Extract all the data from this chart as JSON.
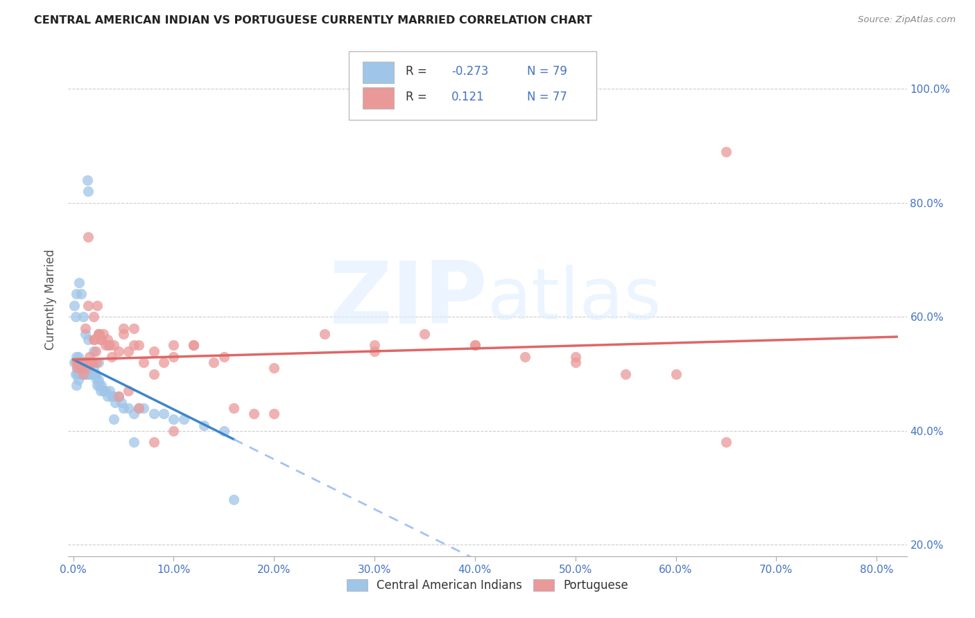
{
  "title": "CENTRAL AMERICAN INDIAN VS PORTUGUESE CURRENTLY MARRIED CORRELATION CHART",
  "source": "Source: ZipAtlas.com",
  "ylabel": "Currently Married",
  "legend_label1": "Central American Indians",
  "legend_label2": "Portuguese",
  "R1": -0.273,
  "N1": 79,
  "R2": 0.121,
  "N2": 77,
  "color1": "#9fc5e8",
  "color2": "#ea9999",
  "trendline1_color": "#3d85c8",
  "trendline2_color": "#e06666",
  "trendline1_dashed_color": "#a4c2f4",
  "xlim": [
    -0.005,
    0.83
  ],
  "ylim": [
    0.18,
    1.08
  ],
  "xtick_vals": [
    0.0,
    0.1,
    0.2,
    0.3,
    0.4,
    0.5,
    0.6,
    0.7,
    0.8
  ],
  "xtick_labels": [
    "0.0%",
    "10.0%",
    "20.0%",
    "30.0%",
    "40.0%",
    "50.0%",
    "60.0%",
    "70.0%",
    "80.0%"
  ],
  "ytick_vals": [
    0.2,
    0.4,
    0.6,
    0.8,
    1.0
  ],
  "ytick_labels": [
    "20.0%",
    "40.0%",
    "60.0%",
    "80.0%",
    "100.0%"
  ],
  "blue_x": [
    0.001,
    0.002,
    0.003,
    0.003,
    0.004,
    0.004,
    0.004,
    0.005,
    0.005,
    0.005,
    0.006,
    0.006,
    0.007,
    0.007,
    0.008,
    0.008,
    0.009,
    0.009,
    0.01,
    0.01,
    0.011,
    0.011,
    0.012,
    0.012,
    0.013,
    0.013,
    0.014,
    0.014,
    0.015,
    0.015,
    0.016,
    0.016,
    0.017,
    0.018,
    0.019,
    0.02,
    0.021,
    0.022,
    0.023,
    0.024,
    0.025,
    0.026,
    0.027,
    0.028,
    0.03,
    0.032,
    0.034,
    0.036,
    0.038,
    0.04,
    0.042,
    0.045,
    0.048,
    0.05,
    0.055,
    0.06,
    0.065,
    0.07,
    0.08,
    0.09,
    0.1,
    0.11,
    0.13,
    0.15,
    0.014,
    0.015,
    0.001,
    0.002,
    0.003,
    0.006,
    0.008,
    0.01,
    0.012,
    0.015,
    0.02,
    0.025,
    0.04,
    0.06,
    0.16
  ],
  "blue_y": [
    0.52,
    0.5,
    0.53,
    0.48,
    0.52,
    0.5,
    0.51,
    0.53,
    0.5,
    0.49,
    0.51,
    0.5,
    0.52,
    0.51,
    0.5,
    0.52,
    0.51,
    0.5,
    0.52,
    0.51,
    0.5,
    0.52,
    0.51,
    0.5,
    0.52,
    0.51,
    0.5,
    0.52,
    0.51,
    0.5,
    0.52,
    0.51,
    0.5,
    0.52,
    0.5,
    0.51,
    0.5,
    0.5,
    0.49,
    0.48,
    0.49,
    0.48,
    0.47,
    0.48,
    0.47,
    0.47,
    0.46,
    0.47,
    0.46,
    0.46,
    0.45,
    0.46,
    0.45,
    0.44,
    0.44,
    0.43,
    0.44,
    0.44,
    0.43,
    0.43,
    0.42,
    0.42,
    0.41,
    0.4,
    0.84,
    0.82,
    0.62,
    0.6,
    0.64,
    0.66,
    0.64,
    0.6,
    0.57,
    0.56,
    0.54,
    0.52,
    0.42,
    0.38,
    0.28
  ],
  "pink_x": [
    0.003,
    0.004,
    0.005,
    0.006,
    0.007,
    0.008,
    0.009,
    0.01,
    0.011,
    0.012,
    0.013,
    0.014,
    0.015,
    0.016,
    0.017,
    0.018,
    0.019,
    0.02,
    0.021,
    0.022,
    0.023,
    0.024,
    0.025,
    0.026,
    0.027,
    0.028,
    0.03,
    0.032,
    0.034,
    0.036,
    0.038,
    0.04,
    0.045,
    0.05,
    0.055,
    0.06,
    0.065,
    0.07,
    0.08,
    0.09,
    0.1,
    0.12,
    0.14,
    0.16,
    0.18,
    0.2,
    0.25,
    0.3,
    0.35,
    0.4,
    0.45,
    0.5,
    0.55,
    0.6,
    0.65,
    0.01,
    0.015,
    0.012,
    0.02,
    0.025,
    0.035,
    0.05,
    0.06,
    0.08,
    0.1,
    0.12,
    0.15,
    0.2,
    0.3,
    0.4,
    0.5,
    0.055,
    0.045,
    0.065,
    0.08,
    0.1,
    0.65
  ],
  "pink_y": [
    0.52,
    0.51,
    0.52,
    0.52,
    0.51,
    0.52,
    0.52,
    0.52,
    0.52,
    0.52,
    0.51,
    0.52,
    0.74,
    0.53,
    0.52,
    0.52,
    0.52,
    0.6,
    0.56,
    0.54,
    0.52,
    0.62,
    0.57,
    0.57,
    0.56,
    0.56,
    0.57,
    0.55,
    0.56,
    0.55,
    0.53,
    0.55,
    0.54,
    0.58,
    0.54,
    0.55,
    0.55,
    0.52,
    0.5,
    0.52,
    0.53,
    0.55,
    0.52,
    0.44,
    0.43,
    0.43,
    0.57,
    0.55,
    0.57,
    0.55,
    0.53,
    0.52,
    0.5,
    0.5,
    0.89,
    0.5,
    0.62,
    0.58,
    0.56,
    0.57,
    0.55,
    0.57,
    0.58,
    0.54,
    0.55,
    0.55,
    0.53,
    0.51,
    0.54,
    0.55,
    0.53,
    0.47,
    0.46,
    0.44,
    0.38,
    0.4,
    0.38
  ],
  "blue_trendline_x0": 0.0,
  "blue_trendline_y0": 0.525,
  "blue_trendline_x1": 0.16,
  "blue_trendline_y1": 0.385,
  "blue_trendline_solid_end": 0.16,
  "blue_trendline_dash_end": 0.82,
  "pink_trendline_x0": 0.0,
  "pink_trendline_y0": 0.525,
  "pink_trendline_x1": 0.82,
  "pink_trendline_y1": 0.565
}
